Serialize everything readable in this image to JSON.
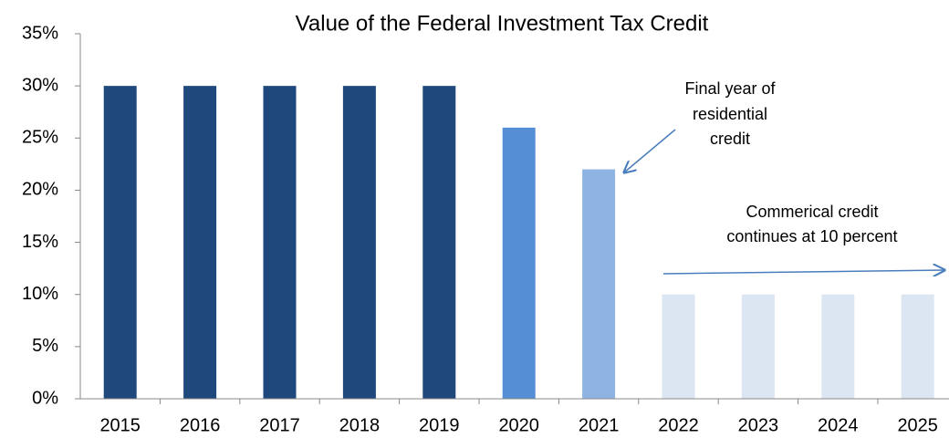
{
  "chart_data": {
    "type": "bar",
    "title": "Value of the Federal Investment Tax Credit",
    "categories": [
      "2015",
      "2016",
      "2017",
      "2018",
      "2019",
      "2020",
      "2021",
      "2022",
      "2023",
      "2024",
      "2025"
    ],
    "values": [
      30,
      30,
      30,
      30,
      30,
      26,
      22,
      10,
      10,
      10,
      10
    ],
    "colors": [
      "#1f497d",
      "#1f497d",
      "#1f497d",
      "#1f497d",
      "#1f497d",
      "#558ed5",
      "#8eb4e3",
      "#dce6f2",
      "#dce6f2",
      "#dce6f2",
      "#dce6f2"
    ],
    "ylim": [
      0,
      35
    ],
    "yticks": [
      {
        "value": 0,
        "label": "0%"
      },
      {
        "value": 5,
        "label": "5%"
      },
      {
        "value": 10,
        "label": "10%"
      },
      {
        "value": 15,
        "label": "15%"
      },
      {
        "value": 20,
        "label": "20%"
      },
      {
        "value": 25,
        "label": "25%"
      },
      {
        "value": 30,
        "label": "30%"
      },
      {
        "value": 35,
        "label": "35%"
      }
    ],
    "grid": false,
    "annotations": [
      {
        "lines": [
          "Final year of",
          "residential",
          "credit"
        ]
      },
      {
        "lines": [
          "Commerical credit",
          "continues at 10 percent"
        ]
      }
    ]
  }
}
